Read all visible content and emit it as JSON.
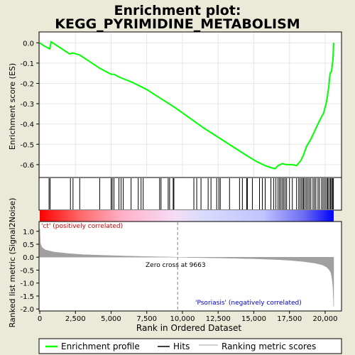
{
  "chart_data": [
    {
      "type": "line",
      "title": "Enrichment plot:\nKEGG_PYRIMIDINE_METABOLISM",
      "title_lines": [
        "Enrichment plot:",
        "KEGG_PYRIMIDINE_METABOLISM"
      ],
      "ylabel": "Enrichment score (ES)",
      "xlim": [
        0,
        21000
      ],
      "ylim": [
        -0.66,
        0.05
      ],
      "yticks": [
        0.0,
        -0.1,
        -0.2,
        -0.3,
        -0.4,
        -0.5,
        -0.6
      ],
      "ytick_labels": [
        "0.0",
        "-0.1",
        "-0.2",
        "-0.3",
        "-0.4",
        "-0.5",
        "-0.6"
      ],
      "grid": true,
      "series": [
        {
          "name": "Enrichment profile",
          "color": "#00ff00",
          "x": [
            0,
            300,
            700,
            800,
            2100,
            2300,
            2800,
            4200,
            5000,
            5200,
            5600,
            6500,
            7500,
            8500,
            9500,
            10500,
            11500,
            12500,
            13500,
            14500,
            15200,
            15800,
            16200,
            16500,
            16700,
            17000,
            17300,
            17700,
            18000,
            18300,
            18500,
            18700,
            19000,
            19300,
            19600,
            19900,
            20100,
            20250,
            20350,
            20450,
            20550,
            20600
          ],
          "y": [
            0.0,
            -0.015,
            -0.03,
            0.005,
            -0.055,
            -0.05,
            -0.06,
            -0.125,
            -0.155,
            -0.155,
            -0.17,
            -0.195,
            -0.23,
            -0.275,
            -0.32,
            -0.37,
            -0.42,
            -0.465,
            -0.51,
            -0.555,
            -0.585,
            -0.605,
            -0.615,
            -0.62,
            -0.605,
            -0.595,
            -0.6,
            -0.6,
            -0.605,
            -0.58,
            -0.55,
            -0.51,
            -0.475,
            -0.43,
            -0.385,
            -0.345,
            -0.29,
            -0.22,
            -0.15,
            -0.14,
            -0.08,
            0.0
          ]
        }
      ]
    },
    {
      "type": "hits",
      "name": "Hits",
      "x": [
        650,
        730,
        2150,
        2330,
        2800,
        4200,
        5000,
        5080,
        5200,
        5550,
        5700,
        5850,
        6400,
        6900,
        7100,
        7250,
        8400,
        8500,
        9000,
        9100,
        9350,
        9400,
        10800,
        11000,
        11300,
        11800,
        12000,
        12400,
        12550,
        12650,
        13300,
        14000,
        14200,
        14500,
        14550,
        14900,
        15400,
        15600,
        15800,
        16200,
        16400,
        16550,
        16700,
        16800,
        16900,
        17000,
        17100,
        17200,
        17300,
        17500,
        17700,
        18000,
        18150,
        18250,
        18350,
        18450,
        18500,
        18600,
        18700,
        18800,
        18900,
        19000,
        19150,
        19250,
        19350,
        19500,
        19600,
        19750,
        19850,
        19950,
        20050,
        20150,
        20200,
        20300,
        20380,
        20450,
        20520,
        20580
      ]
    },
    {
      "type": "area",
      "ylabel": "Ranked list metric (Signal2Noise)",
      "xlabel": "Rank in Ordered Dataset",
      "xlim": [
        0,
        21000
      ],
      "ylim": [
        -2.05,
        1.35
      ],
      "yticks": [
        1.0,
        0.5,
        0.0,
        -0.5,
        -1.0,
        -1.5,
        -2.0
      ],
      "ytick_labels": [
        "1.0",
        "0.5",
        "0.0",
        "-0.5",
        "-1.0",
        "-1.5",
        "-2.0"
      ],
      "xticks": [
        0,
        2500,
        5000,
        7500,
        10000,
        12500,
        15000,
        17500,
        20000
      ],
      "xtick_labels": [
        "0",
        "2,500",
        "5,000",
        "7,500",
        "10,000",
        "12,500",
        "15,000",
        "17,500",
        "20,000"
      ],
      "zero_cross": 9663,
      "series": [
        {
          "name": "Ranking metric scores",
          "color": "#a0a0a0",
          "x": [
            0,
            40,
            150,
            400,
            1000,
            2000,
            3000,
            4500,
            6000,
            7500,
            9000,
            9663,
            11000,
            13000,
            15000,
            16500,
            17500,
            18500,
            19300,
            19800,
            20100,
            20300,
            20400,
            20450,
            20500,
            20550,
            20600
          ],
          "y": [
            1.1,
            0.55,
            0.38,
            0.28,
            0.2,
            0.14,
            0.1,
            0.07,
            0.045,
            0.025,
            0.008,
            0.0,
            -0.015,
            -0.035,
            -0.06,
            -0.09,
            -0.12,
            -0.17,
            -0.23,
            -0.3,
            -0.38,
            -0.5,
            -0.6,
            -0.72,
            -0.9,
            -1.2,
            -1.9
          ]
        }
      ]
    }
  ],
  "annotations": {
    "positive": "'ct' (positively correlated)",
    "negative": "'Psoriasis' (negatively correlated)",
    "zero_cross": "Zero cross at 9663"
  },
  "legend": {
    "position": "bottom",
    "items": [
      {
        "label": "Enrichment profile",
        "color": "#00ff00"
      },
      {
        "label": "Hits",
        "color": "#000000"
      },
      {
        "label": "Ranking metric scores",
        "color": "#a0a0a0"
      }
    ]
  },
  "colors": {
    "background": "#ebe9d8",
    "plot_bg": "#ffffff",
    "profile": "#00ff00",
    "positive_label": "#cc0000",
    "negative_label": "#0000cc",
    "zero_cross_line": "#808080"
  }
}
